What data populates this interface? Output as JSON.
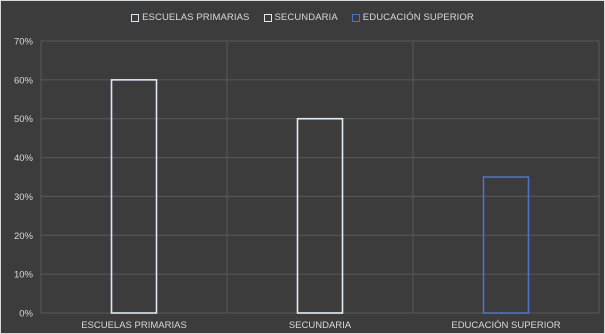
{
  "chart_data": {
    "type": "bar",
    "categories": [
      "ESCUELAS PRIMARIAS",
      "SECUNDARIA",
      "EDUCACIÓN SUPERIOR"
    ],
    "series": [
      {
        "name": "ESCUELAS PRIMARIAS",
        "values": [
          60,
          null,
          null
        ],
        "color": "#dce6f5"
      },
      {
        "name": "SECUNDARIA",
        "values": [
          null,
          50,
          null
        ],
        "color": "#e7ecf4"
      },
      {
        "name": "EDUCACIÓN SUPERIOR",
        "values": [
          null,
          null,
          35
        ],
        "color": "#4a73c9"
      }
    ],
    "values": [
      60,
      50,
      35
    ],
    "y_ticks": [
      "0%",
      "10%",
      "20%",
      "30%",
      "40%",
      "50%",
      "60%",
      "70%"
    ],
    "ylim": [
      0,
      70
    ],
    "grid": true,
    "legend_position": "top-center",
    "title": "",
    "xlabel": "",
    "ylabel": ""
  },
  "colors": {
    "background": "#3c3c3c",
    "grid": "#595959",
    "text": "#d9d9d9"
  }
}
